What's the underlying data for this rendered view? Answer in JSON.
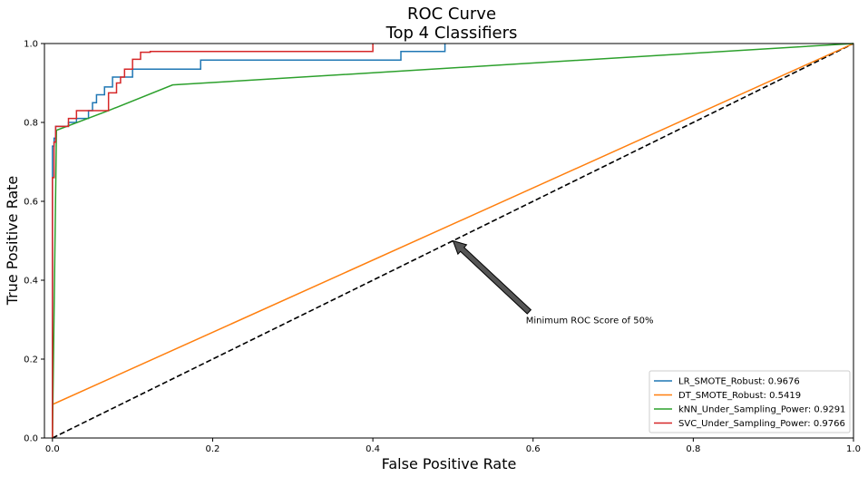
{
  "chart_data": {
    "type": "line",
    "title": "ROC Curve",
    "subtitle": "Top 4 Classifiers",
    "xlabel": "False Positive Rate",
    "ylabel": "True Positive Rate",
    "xlim": [
      -0.01,
      1.0
    ],
    "ylim": [
      0.0,
      1.0
    ],
    "xticks": [
      0.0,
      0.2,
      0.4,
      0.6,
      0.8,
      1.0
    ],
    "yticks": [
      0.0,
      0.2,
      0.4,
      0.6,
      0.8,
      1.0
    ],
    "tick_labels_x": [
      "0.0",
      "0.2",
      "0.4",
      "0.6",
      "0.8",
      "1.0"
    ],
    "tick_labels_y": [
      "0.0",
      "0.2",
      "0.4",
      "0.6",
      "0.8",
      "1.0"
    ],
    "grid": false,
    "legend_position": "lower-right",
    "series": [
      {
        "name": "LR_SMOTE_Robust: 0.9676",
        "color": "#1f77b4",
        "x": [
          0.0,
          0.0,
          0.002,
          0.002,
          0.004,
          0.004,
          0.02,
          0.02,
          0.03,
          0.03,
          0.045,
          0.045,
          0.05,
          0.05,
          0.055,
          0.055,
          0.065,
          0.065,
          0.075,
          0.075,
          0.1,
          0.1,
          0.185,
          0.185,
          0.435,
          0.435,
          0.49,
          0.49
        ],
        "y": [
          0.0,
          0.74,
          0.74,
          0.76,
          0.76,
          0.79,
          0.79,
          0.8,
          0.8,
          0.81,
          0.81,
          0.83,
          0.83,
          0.85,
          0.85,
          0.87,
          0.87,
          0.89,
          0.89,
          0.915,
          0.915,
          0.935,
          0.935,
          0.958,
          0.958,
          0.98,
          0.98,
          1.0
        ]
      },
      {
        "name": "DT_SMOTE_Robust: 0.5419",
        "color": "#ff7f0e",
        "x": [
          0.0,
          0.0,
          1.0
        ],
        "y": [
          0.0,
          0.085,
          1.0
        ]
      },
      {
        "name": "kNN_Under_Sampling_Power: 0.9291",
        "color": "#2ca02c",
        "x": [
          0.0,
          0.005,
          0.07,
          0.15,
          1.0
        ],
        "y": [
          0.0,
          0.78,
          0.83,
          0.895,
          1.0
        ]
      },
      {
        "name": "SVC_Under_Sampling_Power: 0.9766",
        "color": "#d62728",
        "x": [
          0.0,
          0.0,
          0.002,
          0.002,
          0.004,
          0.004,
          0.02,
          0.02,
          0.03,
          0.03,
          0.07,
          0.07,
          0.08,
          0.08,
          0.085,
          0.085,
          0.09,
          0.09,
          0.1,
          0.1,
          0.11,
          0.11,
          0.122,
          0.122,
          0.4,
          0.4
        ],
        "y": [
          0.0,
          0.66,
          0.66,
          0.75,
          0.75,
          0.79,
          0.79,
          0.81,
          0.81,
          0.83,
          0.83,
          0.875,
          0.875,
          0.9,
          0.9,
          0.915,
          0.915,
          0.935,
          0.935,
          0.96,
          0.96,
          0.978,
          0.978,
          0.98,
          0.98,
          1.0
        ]
      }
    ],
    "baseline": {
      "x": [
        0.0,
        1.0
      ],
      "y": [
        0.0,
        1.0
      ],
      "color": "#000000",
      "style": "dashed"
    },
    "annotation": {
      "text": "Minimum ROC Score of 50%",
      "arrow_head": [
        0.5,
        0.5
      ],
      "arrow_tail": [
        0.595,
        0.32
      ],
      "text_at": [
        0.6,
        0.3
      ]
    }
  }
}
